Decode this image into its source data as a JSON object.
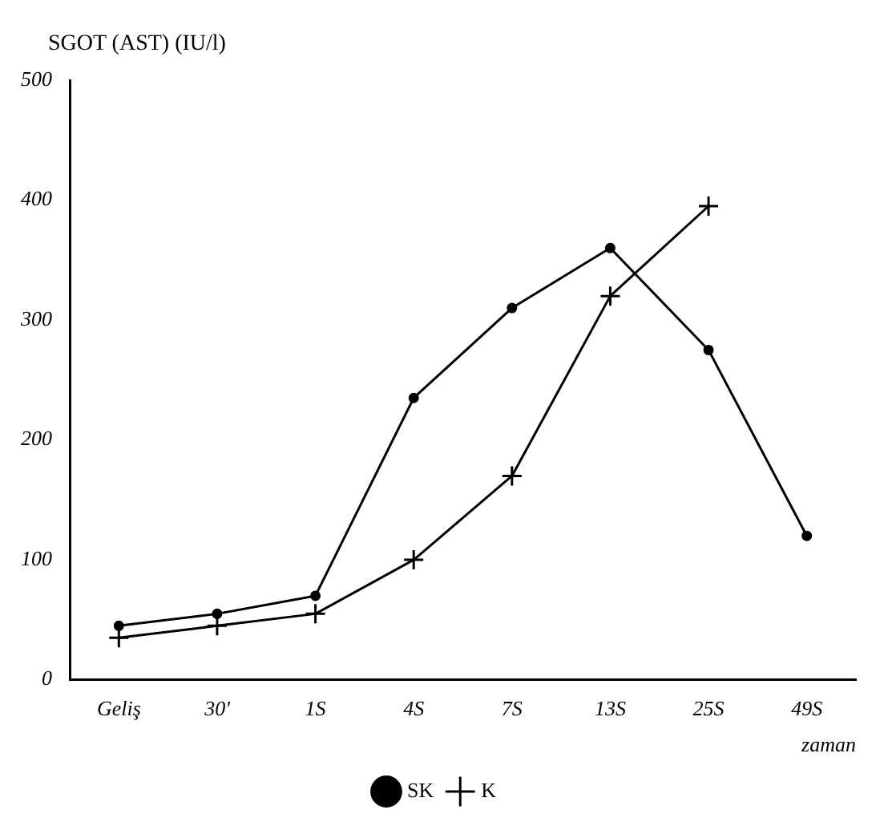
{
  "chart_data": {
    "type": "line",
    "ylabel": "SGOT (AST) (IU/l)",
    "xlabel": "zaman",
    "categories": [
      "Geliş",
      "30'",
      "1S",
      "4S",
      "7S",
      "13S",
      "25S",
      "49S"
    ],
    "series": [
      {
        "name": "SK",
        "color": "#000000",
        "marker": "circle",
        "values": [
          45,
          55,
          70,
          235,
          310,
          360,
          275,
          120
        ]
      },
      {
        "name": "K",
        "color": "#000000",
        "marker": "cross",
        "values": [
          35,
          45,
          55,
          100,
          170,
          320,
          395,
          null
        ]
      }
    ],
    "ylim": [
      0,
      500
    ],
    "yticks": [
      0,
      100,
      200,
      300,
      400,
      500
    ],
    "grid": false,
    "legend": "bottom",
    "line_style": "solid"
  }
}
